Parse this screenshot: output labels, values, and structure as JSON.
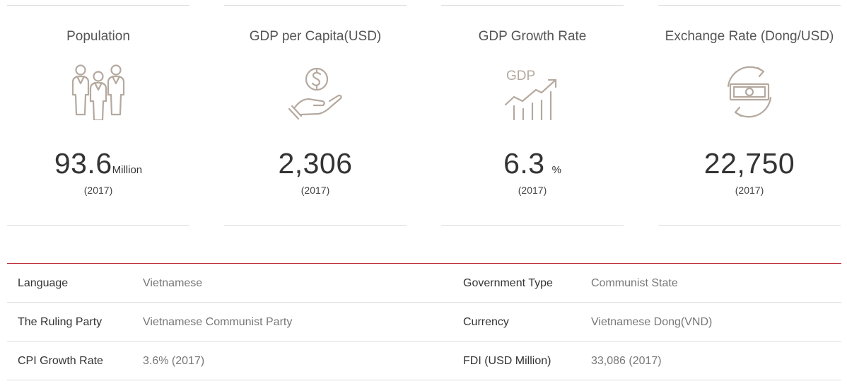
{
  "stats": [
    {
      "title": "Population",
      "value": "93.6",
      "unit": "Million",
      "year": "(2017)",
      "icon": "people-icon"
    },
    {
      "title": "GDP per Capita(USD)",
      "value": "2,306",
      "unit": "",
      "year": "(2017)",
      "icon": "hand-dollar-coin-icon"
    },
    {
      "title": "GDP Growth Rate",
      "value": "6.3",
      "unit": "%",
      "year": "(2017)",
      "icon": "gdp-growth-chart-icon",
      "icon_text": "GDP"
    },
    {
      "title": "Exchange Rate (Dong/USD)",
      "value": "22,750",
      "unit": "",
      "year": "(2017)",
      "icon": "currency-exchange-icon"
    }
  ],
  "info": {
    "rows": [
      {
        "label1": "Language",
        "value1": "Vietnamese",
        "label2": "Government Type",
        "value2": "Communist State"
      },
      {
        "label1": "The Ruling Party",
        "value1": "Vietnamese Communist Party",
        "label2": "Currency",
        "value2": "Vietnamese Dong(VND)"
      },
      {
        "label1": "CPI Growth Rate",
        "value1": "3.6% (2017)",
        "label2": "FDI (USD Million)",
        "value2": "33,086 (2017)"
      }
    ]
  },
  "colors": {
    "icon": "#b5a99f",
    "accent_line": "#b8232f",
    "divider": "#dcdcdc"
  }
}
